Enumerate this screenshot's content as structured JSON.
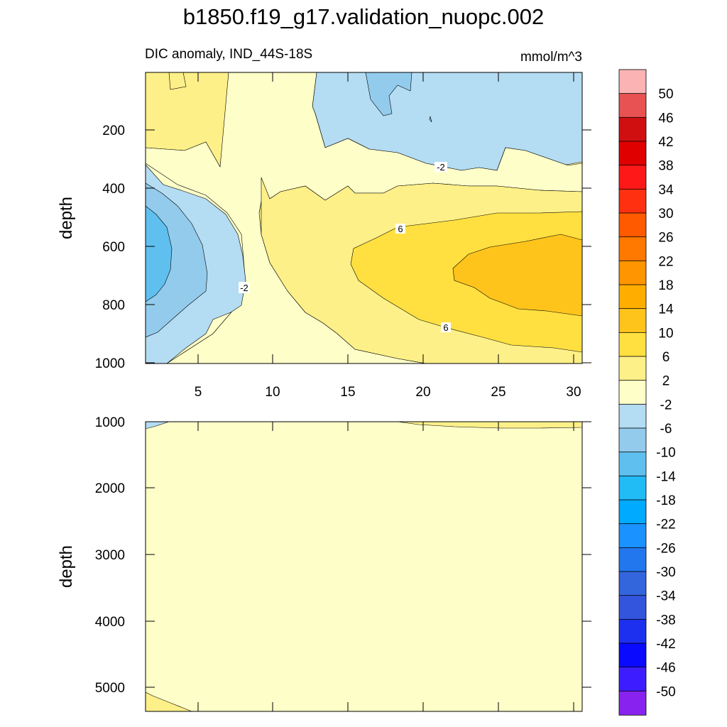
{
  "chart_data": {
    "type": "contour",
    "title": "b1850.f19_g17.validation_nuopc.002",
    "units": "mmol/m^3",
    "colorbar": {
      "levels": [
        "50",
        "46",
        "42",
        "38",
        "34",
        "30",
        "26",
        "22",
        "18",
        "14",
        "10",
        "6",
        "2",
        "-2",
        "-6",
        "-10",
        "-14",
        "-18",
        "-22",
        "-26",
        "-30",
        "-34",
        "-38",
        "-42",
        "-46",
        "-50"
      ],
      "colors": [
        "#fbb3b3",
        "#e85252",
        "#d01010",
        "#e00000",
        "#ff1818",
        "#ff3010",
        "#ff5a00",
        "#ff7800",
        "#ff9500",
        "#ffae00",
        "#ffc41c",
        "#ffe040",
        "#fef088",
        "#fefec8",
        "#b4dcf2",
        "#93cbec",
        "#5fc0f0",
        "#21bbf6",
        "#00aaff",
        "#1a92ff",
        "#2277ee",
        "#3366dd",
        "#3355dd",
        "#1d30f0",
        "#0a0aff",
        "#3d1dff",
        "#8822ee"
      ]
    },
    "panels": [
      {
        "name": "upper",
        "subtitle": "DIC anomaly, IND_44S-18S",
        "units_label": "mmol/m^3",
        "ylabel": "depth",
        "xlim": [
          1.5,
          30.5
        ],
        "ylim": [
          1000,
          0
        ],
        "x_ticks": [
          "5",
          "10",
          "15",
          "20",
          "25",
          "30"
        ],
        "y_ticks": [
          "200",
          "400",
          "600",
          "800",
          "1000"
        ],
        "contour_labels": [
          "-2",
          "6",
          "-2",
          "6"
        ]
      },
      {
        "name": "lower",
        "ylabel": "depth",
        "xlim": [
          1.5,
          30.5
        ],
        "ylim": [
          5350,
          1000
        ],
        "y_ticks": [
          "1000",
          "2000",
          "3000",
          "4000",
          "5000"
        ],
        "note": "nearly uniform between -2 and 2"
      }
    ]
  }
}
